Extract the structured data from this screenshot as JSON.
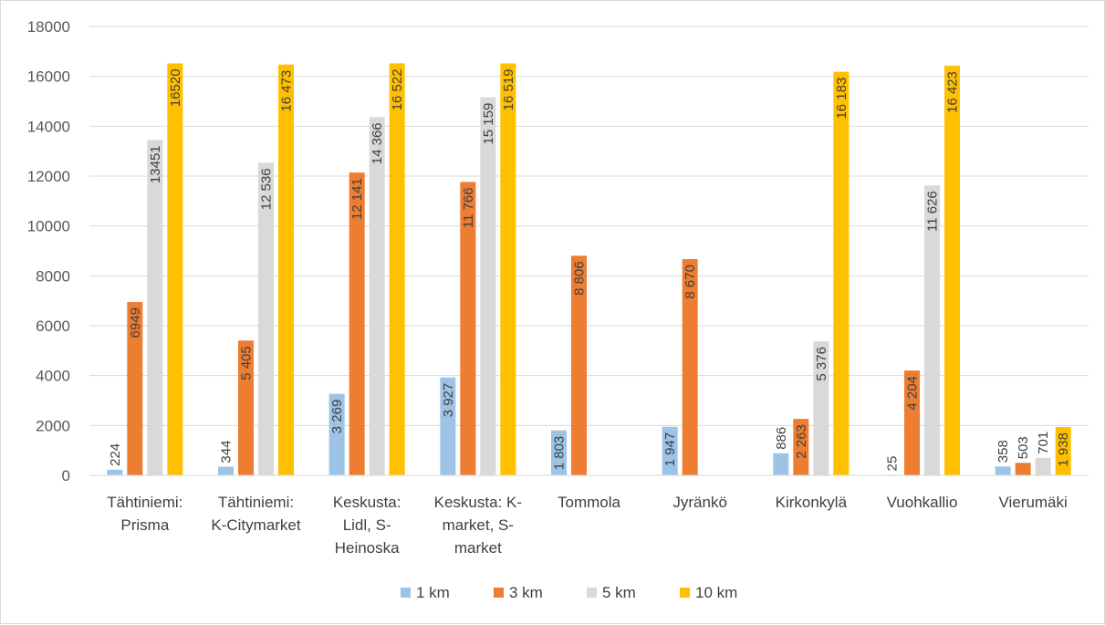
{
  "chart_data": {
    "type": "bar",
    "title": "",
    "xlabel": "",
    "ylabel": "",
    "ylim": [
      0,
      18000
    ],
    "yticks": [
      0,
      2000,
      4000,
      6000,
      8000,
      10000,
      12000,
      14000,
      16000,
      18000
    ],
    "grid": true,
    "legend_position": "bottom",
    "categories": [
      [
        "Tähtiniemi:",
        "Prisma"
      ],
      [
        "Tähtiniemi:",
        "K-Citymarket"
      ],
      [
        "Keskusta:",
        "Lidl, S-",
        "Heinoska"
      ],
      [
        "Keskusta: K-",
        "market, S-",
        "market"
      ],
      [
        "Tommola"
      ],
      [
        "Jyränkö"
      ],
      [
        "Kirkonkylä"
      ],
      [
        "Vuohkallio"
      ],
      [
        "Vierumäki"
      ]
    ],
    "series": [
      {
        "name": "1 km",
        "color": "#9dc3e6",
        "values": [
          224,
          344,
          3269,
          3927,
          1803,
          1947,
          886,
          25,
          358
        ],
        "labels": [
          "224",
          "344",
          "3 269",
          "3 927",
          "1 803",
          "1 947",
          "886",
          "25",
          "358"
        ]
      },
      {
        "name": "3 km",
        "color": "#ed7d31",
        "values": [
          6949,
          5405,
          12141,
          11766,
          8806,
          8670,
          2263,
          4204,
          503
        ],
        "labels": [
          "6949",
          "5 405",
          "12 141",
          "11 766",
          "8 806",
          "8 670",
          "2 263",
          "4 204",
          "503"
        ]
      },
      {
        "name": "5 km",
        "color": "#d9d9d9",
        "values": [
          13451,
          12536,
          14366,
          15159,
          null,
          null,
          5376,
          11626,
          701
        ],
        "labels": [
          "13451",
          "12 536",
          "14 366",
          "15 159",
          null,
          null,
          "5 376",
          "11 626",
          "701"
        ]
      },
      {
        "name": "10 km",
        "color": "#ffc000",
        "values": [
          16520,
          16473,
          16522,
          16519,
          null,
          null,
          16183,
          16423,
          1938
        ],
        "labels": [
          "16520",
          "16 473",
          "16 522",
          "16 519",
          null,
          null,
          "16 183",
          "16 423",
          "1 938"
        ]
      }
    ]
  }
}
